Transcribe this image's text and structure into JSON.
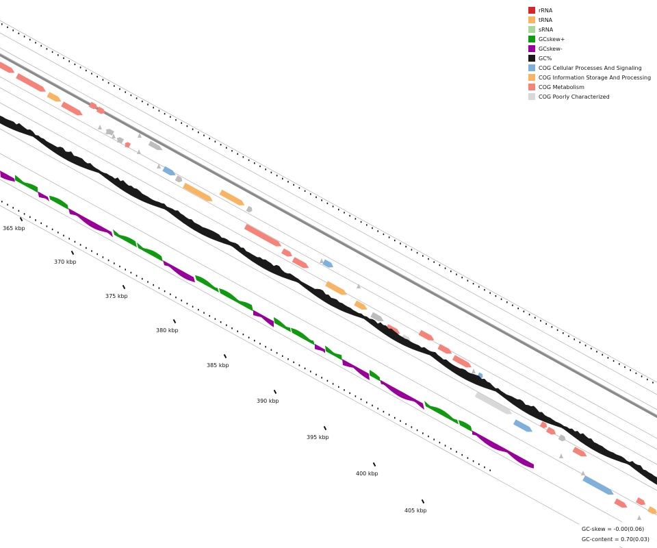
{
  "legend": [
    {
      "label": "rRNA",
      "color": "#d62728"
    },
    {
      "label": "tRNA",
      "color": "#f8b462"
    },
    {
      "label": "sRNA",
      "color": "#a6d99a"
    },
    {
      "label": "GCskew+",
      "color": "#109a10"
    },
    {
      "label": "GCskew-",
      "color": "#990099"
    },
    {
      "label": "GC%",
      "color": "#1a1a1a"
    },
    {
      "label": "COG Cellular Processes And Signaling",
      "color": "#7eb0da"
    },
    {
      "label": "COG Information Storage And Processing",
      "color": "#f8b462"
    },
    {
      "label": "COG Metabolism",
      "color": "#f5837a"
    },
    {
      "label": "COG Poorly Characterized",
      "color": "#d8d8d8"
    }
  ],
  "ticks": [
    {
      "label": "365 kbp"
    },
    {
      "label": "370 kbp"
    },
    {
      "label": "375 kbp"
    },
    {
      "label": "380 kbp"
    },
    {
      "label": "385 kbp"
    },
    {
      "label": "390 kbp"
    },
    {
      "label": "395 kbp"
    },
    {
      "label": "400 kbp"
    },
    {
      "label": "405 kbp"
    }
  ],
  "stats": {
    "gc_skew": "GC-skew = -0.00(0.06)",
    "gc_content": "GC-content = 0.70(0.03)"
  },
  "colors": {
    "backbone": "#8a8a8a",
    "guide": "#b8b8b8",
    "gc": "#1a1a1a",
    "skew_pos": "#109a10",
    "skew_neg": "#990099",
    "cog_cellular": "#7eb0da",
    "cog_info": "#f8b462",
    "cog_metabolism": "#f5837a",
    "cog_poor": "#d8d8d8",
    "other_gene": "#bdbdbd"
  }
}
